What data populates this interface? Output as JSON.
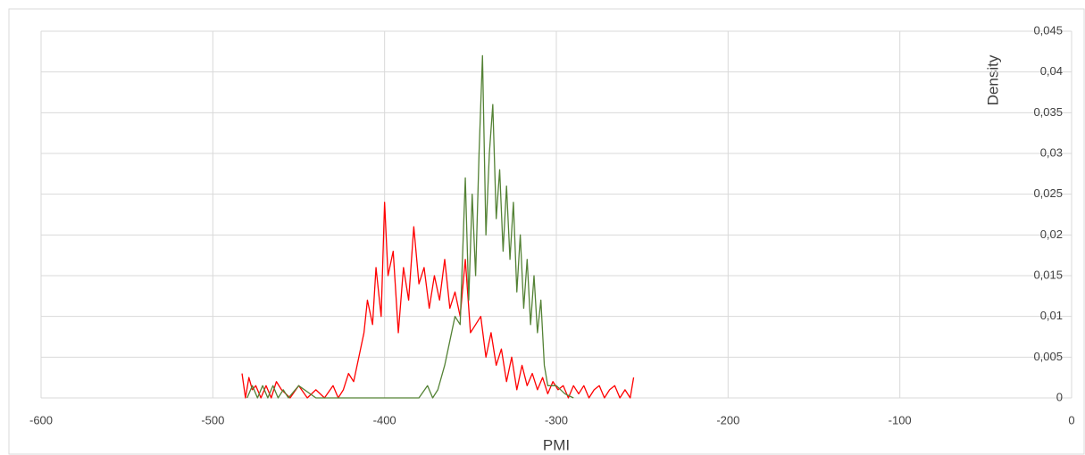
{
  "chart_data": {
    "type": "line",
    "xlabel": "PMI",
    "ylabel": "Density",
    "xlim": [
      -600,
      0
    ],
    "xticks": [
      -600,
      -500,
      -400,
      -300,
      -200,
      -100,
      0
    ],
    "ylim": [
      0,
      0.045
    ],
    "yticks": [
      0,
      {
        "value": 0.005,
        "label": "0,005"
      },
      {
        "value": 0.01,
        "label": "0,01"
      },
      {
        "value": 0.015,
        "label": "0,015"
      },
      {
        "value": 0.02,
        "label": "0,02"
      },
      {
        "value": 0.025,
        "label": "0,025"
      },
      {
        "value": 0.03,
        "label": "0,03"
      },
      {
        "value": 0.035,
        "label": "0,035"
      },
      {
        "value": 0.04,
        "label": "0,04"
      },
      {
        "value": 0.045,
        "label": "0,045"
      }
    ],
    "grid": true,
    "series": [
      {
        "color": "#ff0000",
        "x": [
          -483,
          -481,
          -479,
          -477,
          -475,
          -472,
          -469,
          -466,
          -463,
          -460,
          -455,
          -450,
          -445,
          -440,
          -435,
          -430,
          -427,
          -424,
          -421,
          -418,
          -415,
          -412,
          -410,
          -407,
          -405,
          -402,
          -400,
          -398,
          -395,
          -392,
          -389,
          -386,
          -383,
          -380,
          -377,
          -374,
          -371,
          -368,
          -365,
          -362,
          -359,
          -356,
          -353,
          -350,
          -347,
          -344,
          -341,
          -338,
          -335,
          -332,
          -329,
          -326,
          -323,
          -320,
          -317,
          -314,
          -311,
          -308,
          -305,
          -302,
          -299,
          -296,
          -293,
          -290,
          -287,
          -284,
          -281,
          -278,
          -275,
          -272,
          -269,
          -266,
          -263,
          -260,
          -257,
          -255
        ],
        "values": [
          0.003,
          0,
          0.0025,
          0.001,
          0.0015,
          0,
          0.0015,
          0,
          0.002,
          0.001,
          0,
          0.0015,
          0,
          0.001,
          0,
          0.0015,
          0,
          0.001,
          0.003,
          0.002,
          0.005,
          0.008,
          0.012,
          0.009,
          0.016,
          0.01,
          0.024,
          0.015,
          0.018,
          0.008,
          0.016,
          0.012,
          0.021,
          0.014,
          0.016,
          0.011,
          0.015,
          0.012,
          0.017,
          0.011,
          0.013,
          0.01,
          0.017,
          0.008,
          0.009,
          0.01,
          0.005,
          0.008,
          0.004,
          0.006,
          0.002,
          0.005,
          0.001,
          0.004,
          0.0015,
          0.003,
          0.001,
          0.0025,
          0.0005,
          0.002,
          0.001,
          0.0015,
          0,
          0.0015,
          0.0005,
          0.0015,
          0,
          0.001,
          0.0015,
          0,
          0.001,
          0.0015,
          0,
          0.001,
          0,
          0.0025
        ]
      },
      {
        "color": "#548235",
        "x": [
          -480,
          -477,
          -474,
          -471,
          -468,
          -465,
          -462,
          -459,
          -456,
          -450,
          -440,
          -420,
          -400,
          -380,
          -375,
          -372,
          -369,
          -365,
          -362,
          -359,
          -356,
          -353,
          -351,
          -349,
          -347,
          -345,
          -343,
          -341,
          -339,
          -337,
          -335,
          -333,
          -331,
          -329,
          -327,
          -325,
          -323,
          -321,
          -319,
          -317,
          -315,
          -313,
          -311,
          -309,
          -307,
          -305,
          -300,
          -295,
          -290
        ],
        "values": [
          0,
          0.0015,
          0,
          0.0015,
          0,
          0.0015,
          0,
          0.001,
          0,
          0.0015,
          0,
          0,
          0,
          0,
          0.0015,
          0,
          0.001,
          0.004,
          0.007,
          0.01,
          0.009,
          0.027,
          0.012,
          0.025,
          0.015,
          0.03,
          0.042,
          0.02,
          0.03,
          0.036,
          0.022,
          0.028,
          0.018,
          0.026,
          0.017,
          0.024,
          0.013,
          0.02,
          0.011,
          0.017,
          0.009,
          0.015,
          0.008,
          0.012,
          0.004,
          0.0015,
          0.0015,
          0.0005,
          0
        ]
      }
    ]
  }
}
